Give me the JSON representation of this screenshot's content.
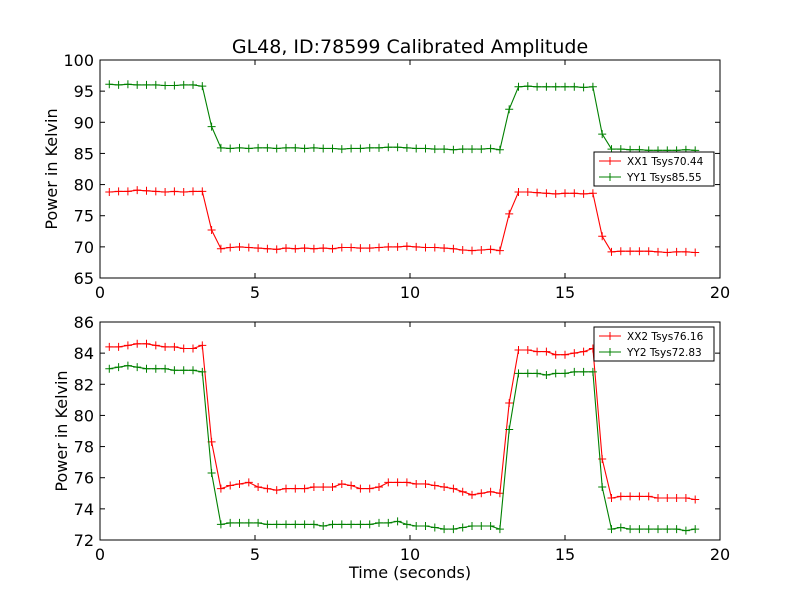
{
  "figure_title": "GL48, ID:78599 Calibrated Amplitude",
  "colors": {
    "xx": "#ff0000",
    "yy": "#008000"
  },
  "chart_data": [
    {
      "type": "line",
      "title": "GL48, ID:78599 Calibrated Amplitude",
      "xlabel": "",
      "ylabel": "Power in Kelvin",
      "xlim": [
        0,
        20
      ],
      "ylim": [
        65,
        100
      ],
      "xticks": [
        0,
        5,
        10,
        15,
        20
      ],
      "yticks": [
        65,
        70,
        75,
        80,
        85,
        90,
        95,
        100
      ],
      "grid": false,
      "legend_position": "right",
      "x": [
        0.3,
        0.6,
        0.9,
        1.2,
        1.5,
        1.8,
        2.1,
        2.4,
        2.7,
        3.0,
        3.3,
        3.6,
        3.9,
        4.2,
        4.5,
        4.8,
        5.1,
        5.4,
        5.7,
        6.0,
        6.3,
        6.6,
        6.9,
        7.2,
        7.5,
        7.8,
        8.1,
        8.4,
        8.7,
        9.0,
        9.3,
        9.6,
        9.9,
        10.2,
        10.5,
        10.8,
        11.1,
        11.4,
        11.7,
        12.0,
        12.3,
        12.6,
        12.9,
        13.2,
        13.5,
        13.8,
        14.1,
        14.4,
        14.7,
        15.0,
        15.3,
        15.6,
        15.9,
        16.2,
        16.5,
        16.8,
        17.1,
        17.4,
        17.7,
        18.0,
        18.3,
        18.6,
        18.9,
        19.2
      ],
      "series": [
        {
          "name": "XX1 Tsys70.44",
          "color": "#ff0000",
          "values": [
            78.8,
            78.9,
            78.9,
            79.1,
            79.0,
            78.9,
            78.8,
            78.9,
            78.8,
            78.9,
            78.9,
            72.7,
            69.7,
            69.9,
            70.0,
            69.9,
            69.8,
            69.7,
            69.6,
            69.8,
            69.7,
            69.8,
            69.7,
            69.8,
            69.7,
            69.9,
            69.9,
            69.8,
            69.8,
            69.9,
            70.0,
            70.0,
            70.1,
            70.0,
            69.9,
            69.9,
            69.8,
            69.7,
            69.5,
            69.4,
            69.5,
            69.6,
            69.4,
            75.3,
            78.8,
            78.8,
            78.7,
            78.6,
            78.5,
            78.6,
            78.6,
            78.5,
            78.6,
            71.7,
            69.2,
            69.3,
            69.3,
            69.3,
            69.3,
            69.2,
            69.1,
            69.2,
            69.2,
            69.1
          ]
        },
        {
          "name": "YY1 Tsys85.55",
          "color": "#008000",
          "values": [
            96.1,
            96.0,
            96.1,
            96.0,
            96.0,
            96.0,
            95.9,
            95.9,
            96.0,
            96.0,
            95.8,
            89.3,
            85.9,
            85.8,
            85.9,
            85.8,
            85.9,
            85.9,
            85.8,
            85.9,
            85.9,
            85.8,
            85.9,
            85.8,
            85.8,
            85.7,
            85.8,
            85.8,
            85.9,
            85.9,
            86.0,
            86.0,
            85.9,
            85.8,
            85.8,
            85.7,
            85.7,
            85.6,
            85.7,
            85.7,
            85.7,
            85.8,
            85.6,
            92.1,
            95.7,
            95.8,
            95.7,
            95.7,
            95.7,
            95.7,
            95.7,
            95.6,
            95.7,
            88.1,
            85.7,
            85.7,
            85.6,
            85.6,
            85.5,
            85.5,
            85.5,
            85.5,
            85.6,
            85.5
          ]
        }
      ]
    },
    {
      "type": "line",
      "title": "",
      "xlabel": "Time (seconds)",
      "ylabel": "Power in Kelvin",
      "xlim": [
        0,
        20
      ],
      "ylim": [
        72,
        86
      ],
      "xticks": [
        0,
        5,
        10,
        15,
        20
      ],
      "yticks": [
        72,
        74,
        76,
        78,
        80,
        82,
        84,
        86
      ],
      "grid": false,
      "legend_position": "top-right",
      "x": [
        0.3,
        0.6,
        0.9,
        1.2,
        1.5,
        1.8,
        2.1,
        2.4,
        2.7,
        3.0,
        3.3,
        3.6,
        3.9,
        4.2,
        4.5,
        4.8,
        5.1,
        5.4,
        5.7,
        6.0,
        6.3,
        6.6,
        6.9,
        7.2,
        7.5,
        7.8,
        8.1,
        8.4,
        8.7,
        9.0,
        9.3,
        9.6,
        9.9,
        10.2,
        10.5,
        10.8,
        11.1,
        11.4,
        11.7,
        12.0,
        12.3,
        12.6,
        12.9,
        13.2,
        13.5,
        13.8,
        14.1,
        14.4,
        14.7,
        15.0,
        15.3,
        15.6,
        15.9,
        16.2,
        16.5,
        16.8,
        17.1,
        17.4,
        17.7,
        18.0,
        18.3,
        18.6,
        18.9,
        19.2
      ],
      "series": [
        {
          "name": "XX2 Tsys76.16",
          "color": "#ff0000",
          "values": [
            84.4,
            84.4,
            84.5,
            84.6,
            84.6,
            84.5,
            84.4,
            84.4,
            84.3,
            84.3,
            84.5,
            78.3,
            75.3,
            75.5,
            75.6,
            75.7,
            75.4,
            75.3,
            75.2,
            75.3,
            75.3,
            75.3,
            75.4,
            75.4,
            75.4,
            75.6,
            75.5,
            75.3,
            75.3,
            75.4,
            75.7,
            75.7,
            75.7,
            75.6,
            75.6,
            75.5,
            75.4,
            75.3,
            75.1,
            74.9,
            75.0,
            75.1,
            75.0,
            80.8,
            84.2,
            84.2,
            84.1,
            84.1,
            83.9,
            83.9,
            84.0,
            84.1,
            84.3,
            77.2,
            74.7,
            74.8,
            74.8,
            74.8,
            74.8,
            74.7,
            74.7,
            74.7,
            74.7,
            74.6
          ]
        },
        {
          "name": "YY2 Tsys72.83",
          "color": "#008000",
          "values": [
            83.0,
            83.1,
            83.2,
            83.1,
            83.0,
            83.0,
            83.0,
            82.9,
            82.9,
            82.9,
            82.8,
            76.3,
            73.0,
            73.1,
            73.1,
            73.1,
            73.1,
            73.0,
            73.0,
            73.0,
            73.0,
            73.0,
            73.0,
            72.9,
            73.0,
            73.0,
            73.0,
            73.0,
            73.0,
            73.1,
            73.1,
            73.2,
            73.0,
            72.9,
            72.9,
            72.8,
            72.7,
            72.7,
            72.8,
            72.9,
            72.9,
            72.9,
            72.7,
            79.1,
            82.7,
            82.7,
            82.7,
            82.6,
            82.7,
            82.7,
            82.8,
            82.8,
            82.8,
            75.4,
            72.7,
            72.8,
            72.7,
            72.7,
            72.7,
            72.7,
            72.7,
            72.7,
            72.6,
            72.7
          ]
        }
      ]
    }
  ]
}
